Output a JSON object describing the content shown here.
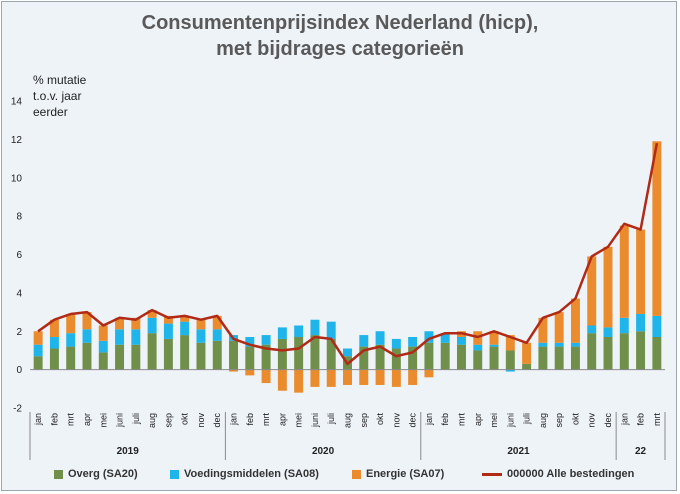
{
  "chart_data": {
    "type": "bar",
    "title": [
      "Consumentenprijsindex Nederland (hicp),",
      "met bijdrages categorieën"
    ],
    "ylabel": [
      "% mutatie",
      "t.o.v. jaar",
      "eerder"
    ],
    "ylim": [
      -2,
      14
    ],
    "yticks": [
      -2,
      0,
      2,
      4,
      6,
      8,
      10,
      12,
      14
    ],
    "categories": [
      "jan",
      "feb",
      "mrt",
      "apr",
      "mei",
      "juni",
      "juli",
      "aug",
      "sep",
      "okt",
      "nov",
      "dec",
      "jan",
      "feb",
      "mrt",
      "apr",
      "mei",
      "juni",
      "juli",
      "aug",
      "sep",
      "okt",
      "nov",
      "dec",
      "jan",
      "feb",
      "mrt",
      "apr",
      "mei",
      "juni",
      "juli",
      "aug",
      "sep",
      "okt",
      "nov",
      "dec",
      "jan",
      "feb",
      "mrt"
    ],
    "years": [
      {
        "label": "2019",
        "months": 12
      },
      {
        "label": "2020",
        "months": 12
      },
      {
        "label": "2021",
        "months": 12
      },
      {
        "label": "22",
        "months": 3
      }
    ],
    "series": [
      {
        "name": "Overg (SA20)",
        "kind": "bar",
        "color": "#6f8f4a",
        "values": [
          0.7,
          1.1,
          1.2,
          1.4,
          0.9,
          1.3,
          1.3,
          1.9,
          1.6,
          1.8,
          1.4,
          1.5,
          1.5,
          1.2,
          1.3,
          1.6,
          1.7,
          1.8,
          1.6,
          0.7,
          1.2,
          1.3,
          1.1,
          1.2,
          1.4,
          1.4,
          1.3,
          1.0,
          1.2,
          1.0,
          0.3,
          1.2,
          1.2,
          1.2,
          1.9,
          1.7,
          1.9,
          2.0,
          1.7
        ]
      },
      {
        "name": "Voedingsmiddelen (SA08)",
        "kind": "bar",
        "color": "#1fb4ea",
        "values": [
          0.6,
          0.6,
          0.7,
          0.7,
          0.6,
          0.8,
          0.8,
          0.8,
          0.8,
          0.7,
          0.7,
          0.6,
          0.3,
          0.5,
          0.5,
          0.6,
          0.6,
          0.8,
          0.9,
          0.4,
          0.6,
          0.7,
          0.5,
          0.5,
          0.6,
          0.5,
          0.4,
          0.3,
          0.1,
          -0.1,
          0.0,
          0.2,
          0.2,
          0.2,
          0.4,
          0.5,
          0.8,
          0.9,
          1.1
        ]
      },
      {
        "name": "Energie (SA07)",
        "kind": "bar",
        "color": "#ea8b2d",
        "values": [
          0.7,
          0.9,
          1.0,
          0.9,
          0.8,
          0.6,
          0.6,
          0.4,
          0.4,
          0.3,
          0.5,
          0.7,
          -0.1,
          -0.3,
          -0.7,
          -1.1,
          -1.2,
          -0.9,
          -0.9,
          -0.8,
          -0.8,
          -0.8,
          -0.9,
          -0.8,
          -0.4,
          0.0,
          0.3,
          0.7,
          0.7,
          0.8,
          1.1,
          1.3,
          1.6,
          2.3,
          3.6,
          4.2,
          4.8,
          4.4,
          9.1
        ]
      },
      {
        "name": "000000 Alle bestedingen",
        "kind": "line",
        "color": "#b02a16",
        "values": [
          2.0,
          2.6,
          2.9,
          3.0,
          2.3,
          2.7,
          2.6,
          3.1,
          2.7,
          2.8,
          2.6,
          2.8,
          1.6,
          1.3,
          1.1,
          1.0,
          1.1,
          1.7,
          1.6,
          0.3,
          1.0,
          1.2,
          0.7,
          0.9,
          1.6,
          1.9,
          1.9,
          1.7,
          2.0,
          1.7,
          1.4,
          2.7,
          3.0,
          3.7,
          5.9,
          6.4,
          7.6,
          7.3,
          11.8
        ]
      }
    ]
  }
}
